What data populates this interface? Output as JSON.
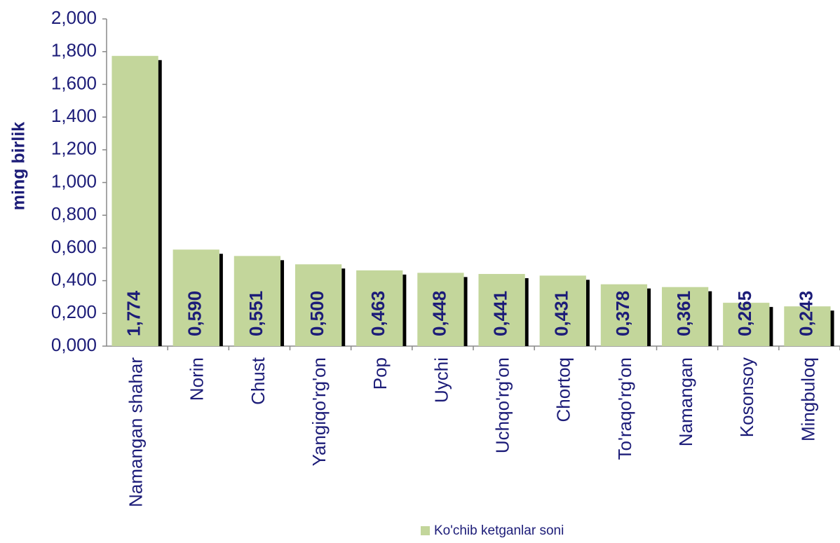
{
  "chart_data": {
    "type": "bar",
    "y_label": "ming birlik",
    "categories": [
      "Namangan shahar",
      "Norin",
      "Chust",
      "Yangiqo'rg'on",
      "Pop",
      "Uychi",
      "Uchqo'rg'on",
      "Chortoq",
      "To'raqo'rg'on",
      "Namangan",
      "Kosonsoy",
      "Mingbuloq"
    ],
    "series": [
      {
        "name": "Ko'chib ketganlar soni",
        "color": "#c3d69b",
        "values": [
          1.774,
          0.59,
          0.551,
          0.5,
          0.463,
          0.448,
          0.441,
          0.431,
          0.378,
          0.361,
          0.265,
          0.243
        ],
        "value_labels": [
          "1,774",
          "0,590",
          "0,551",
          "0,500",
          "0,463",
          "0,448",
          "0,441",
          "0,431",
          "0,378",
          "0,361",
          "0,265",
          "0,243"
        ]
      }
    ],
    "ylim": [
      0,
      2
    ],
    "yticks": [
      {
        "value": 0,
        "label": "0,000"
      },
      {
        "value": 0.2,
        "label": "0,200"
      },
      {
        "value": 0.4,
        "label": "0,400"
      },
      {
        "value": 0.6,
        "label": "0,600"
      },
      {
        "value": 0.8,
        "label": "0,800"
      },
      {
        "value": 1.0,
        "label": "1,000"
      },
      {
        "value": 1.2,
        "label": "1,200"
      },
      {
        "value": 1.4,
        "label": "1,400"
      },
      {
        "value": 1.6,
        "label": "1,600"
      },
      {
        "value": 1.8,
        "label": "1,800"
      },
      {
        "value": 2.0,
        "label": "2,000"
      }
    ],
    "legend": "bottom"
  }
}
